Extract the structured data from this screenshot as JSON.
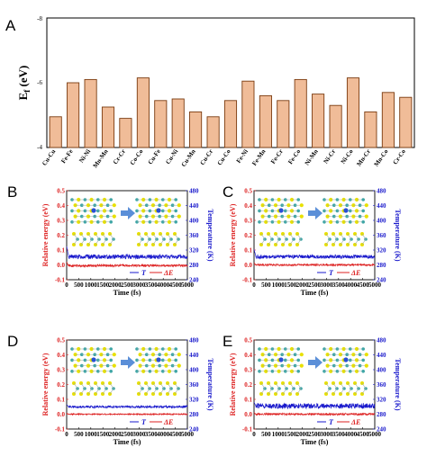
{
  "panel_labels": [
    "A",
    "B",
    "C",
    "D",
    "E"
  ],
  "chart_data": [
    {
      "panel": "A",
      "type": "bar",
      "categories": [
        "Cu-Cu",
        "Fe-Fe",
        "Ni-Ni",
        "Mn-Mn",
        "Cr-Cr",
        "Co-Co",
        "Cu-Fe",
        "Cu-Ni",
        "Cu-Mn",
        "Cu-Cr",
        "Cu-Co",
        "Fe-Ni",
        "Fe-Mn",
        "Fe-Cr",
        "Fe-Co",
        "Ni-Mn",
        "Ni-Cr",
        "Ni-Co",
        "Mn-Cr",
        "Mn-Co",
        "Cr-Co"
      ],
      "values": [
        -4.95,
        -6.0,
        -6.1,
        -5.25,
        -4.9,
        -6.15,
        -5.45,
        -5.5,
        -5.1,
        -4.95,
        -5.45,
        -6.05,
        -5.6,
        -5.45,
        -6.1,
        -5.65,
        -5.3,
        -6.15,
        -5.1,
        -5.7,
        -5.55
      ],
      "ylabel": "E_f (eV)",
      "ylabel_main": "E",
      "ylabel_sub": "f",
      "ylabel_unit": " (eV)",
      "ylim": [
        -4,
        -8
      ],
      "yticks": [
        "-4",
        "-6",
        "-8"
      ],
      "bar_color": "#f0bc98",
      "bar_edge": "#7a3b10"
    },
    {
      "panel": "B",
      "type": "line",
      "xlabel": "Time (fs)",
      "ylabel_left": "Relative energy (eV)",
      "ylabel_right": "Temperature (K)",
      "xticks": [
        "0",
        "500",
        "1000",
        "1500",
        "2000",
        "2500",
        "3000",
        "3500",
        "4000",
        "4500",
        "5000"
      ],
      "yticks_left": [
        "-0.1",
        "0.0",
        "0.1",
        "0.2",
        "0.3",
        "0.4",
        "0.5"
      ],
      "yticks_right": [
        "240",
        "280",
        "320",
        "360",
        "400",
        "440",
        "480"
      ],
      "xlim": [
        0,
        5000
      ],
      "ylim_left": [
        -0.1,
        0.5
      ],
      "ylim_right": [
        240,
        480
      ],
      "legend": {
        "t_label": "T",
        "e_label": "ΔE",
        "position": "bottom-right"
      },
      "series": [
        {
          "name": "T",
          "mean": 302,
          "amplitude": 6,
          "start_peak": 330,
          "color": "#1a1acc"
        },
        {
          "name": "ΔE",
          "mean": -0.005,
          "amplitude": 0.008,
          "start_peak": 0.02,
          "color": "#dd2222"
        }
      ]
    },
    {
      "panel": "C",
      "type": "line",
      "xlabel": "Time (fs)",
      "ylabel_left": "Relative energy (eV)",
      "ylabel_right": "Temperature (K)",
      "xticks": [
        "0",
        "500",
        "1000",
        "1500",
        "2000",
        "2500",
        "3000",
        "3500",
        "4000",
        "4500",
        "5000"
      ],
      "yticks_left": [
        "-0.1",
        "0.0",
        "0.1",
        "0.2",
        "0.3",
        "0.4",
        "0.5"
      ],
      "yticks_right": [
        "240",
        "280",
        "320",
        "360",
        "400",
        "440",
        "480"
      ],
      "xlim": [
        0,
        5000
      ],
      "ylim_left": [
        -0.1,
        0.5
      ],
      "ylim_right": [
        240,
        480
      ],
      "legend": {
        "t_label": "T",
        "e_label": "ΔE",
        "position": "bottom-right"
      },
      "series": [
        {
          "name": "T",
          "mean": 302,
          "amplitude": 5,
          "start_peak": 322,
          "color": "#1a1acc"
        },
        {
          "name": "ΔE",
          "mean": 0.0,
          "amplitude": 0.006,
          "start_peak": 0.015,
          "color": "#dd2222"
        }
      ]
    },
    {
      "panel": "D",
      "type": "line",
      "xlabel": "Time (fs)",
      "ylabel_left": "Relative energy (eV)",
      "ylabel_right": "Temperature (K)",
      "xticks": [
        "0",
        "500",
        "1000",
        "1500",
        "2000",
        "2500",
        "3000",
        "3500",
        "4000",
        "4500",
        "5000"
      ],
      "yticks_left": [
        "-0.1",
        "0.0",
        "0.1",
        "0.2",
        "0.3",
        "0.4",
        "0.5"
      ],
      "yticks_right": [
        "240",
        "280",
        "320",
        "360",
        "400",
        "440",
        "480"
      ],
      "xlim": [
        0,
        5000
      ],
      "ylim_left": [
        -0.1,
        0.5
      ],
      "ylim_right": [
        240,
        480
      ],
      "legend": {
        "t_label": "T",
        "e_label": "ΔE",
        "position": "bottom-right"
      },
      "series": [
        {
          "name": "T",
          "mean": 300,
          "amplitude": 3,
          "start_peak": 306,
          "color": "#1a1acc"
        },
        {
          "name": "ΔE",
          "mean": 0.0,
          "amplitude": 0.004,
          "start_peak": 0.008,
          "color": "#dd2222"
        }
      ]
    },
    {
      "panel": "E",
      "type": "line",
      "xlabel": "Time (fs)",
      "ylabel_left": "Relative energy (eV)",
      "ylabel_right": "Temperature (K)",
      "xticks": [
        "0",
        "500",
        "1000",
        "1500",
        "2000",
        "2500",
        "3000",
        "3500",
        "4000",
        "4500",
        "5000"
      ],
      "yticks_left": [
        "-0.1",
        "0.0",
        "0.1",
        "0.2",
        "0.3",
        "0.4",
        "0.5"
      ],
      "yticks_right": [
        "240",
        "280",
        "320",
        "360",
        "400",
        "440",
        "480"
      ],
      "xlim": [
        0,
        5000
      ],
      "ylim_left": [
        -0.1,
        0.5
      ],
      "ylim_right": [
        240,
        480
      ],
      "legend": {
        "t_label": "T",
        "e_label": "ΔE",
        "position": "bottom-right"
      },
      "series": [
        {
          "name": "T",
          "mean": 302,
          "amplitude": 7,
          "start_peak": 312,
          "color": "#1a1acc"
        },
        {
          "name": "ΔE",
          "mean": 0.0,
          "amplitude": 0.007,
          "start_peak": 0.012,
          "color": "#dd2222"
        }
      ]
    }
  ],
  "colors": {
    "energy": "#dd2222",
    "temperature": "#1a1acc",
    "mo_atom": "#3fa6a6",
    "s_atom": "#e8e000",
    "dopant": "#2a4fd6",
    "arrow": "#5b8fd8"
  }
}
